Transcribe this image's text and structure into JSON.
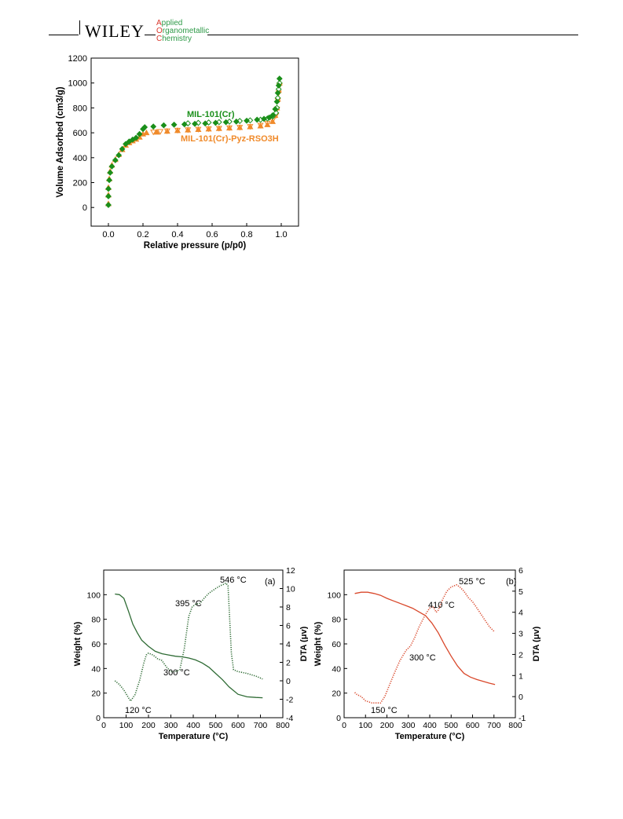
{
  "header": {
    "publisher": "WILEY",
    "journal_lines": [
      {
        "cap": "A",
        "rest": "pplied"
      },
      {
        "cap": "O",
        "rest": "rganometallic"
      },
      {
        "cap": "C",
        "rest": "hemistry"
      }
    ]
  },
  "colors": {
    "green": "#1a8f1a",
    "orange": "#f08a2a",
    "tga_green": "#2e6b34",
    "tga_red": "#d9482b"
  },
  "chart_data": [
    {
      "id": "isotherm",
      "type": "scatter",
      "title": "",
      "xlabel": "Relative pressure (p/p0)",
      "ylabel": "Volume Adsorbed (cm3/g)",
      "xlim": [
        -0.1,
        1.1
      ],
      "ylim": [
        -150,
        1200
      ],
      "xticks": [
        "0.0",
        "0.2",
        "0.4",
        "0.6",
        "0.8",
        "1.0"
      ],
      "yticks": [
        "0",
        "200",
        "400",
        "600",
        "800",
        "1000",
        "1200"
      ],
      "annotations": [
        "MIL-101(Cr)",
        "MIL-101(Cr)-Pyz-RSO3H"
      ],
      "series": [
        {
          "name": "MIL-101(Cr)",
          "marker": "diamond",
          "color": "#1a8f1a",
          "adsorption": [
            [
              0.0,
              20
            ],
            [
              0.0,
              90
            ],
            [
              0.0,
              150
            ],
            [
              0.005,
              220
            ],
            [
              0.01,
              280
            ],
            [
              0.02,
              330
            ],
            [
              0.04,
              380
            ],
            [
              0.06,
              420
            ],
            [
              0.08,
              470
            ],
            [
              0.1,
              510
            ],
            [
              0.12,
              530
            ],
            [
              0.14,
              545
            ],
            [
              0.16,
              560
            ],
            [
              0.18,
              590
            ],
            [
              0.2,
              630
            ],
            [
              0.21,
              645
            ],
            [
              0.26,
              650
            ],
            [
              0.32,
              660
            ],
            [
              0.38,
              665
            ],
            [
              0.44,
              668
            ],
            [
              0.5,
              672
            ],
            [
              0.56,
              675
            ],
            [
              0.62,
              680
            ],
            [
              0.68,
              685
            ],
            [
              0.74,
              690
            ],
            [
              0.8,
              697
            ],
            [
              0.86,
              705
            ],
            [
              0.9,
              712
            ],
            [
              0.93,
              722
            ],
            [
              0.95,
              740
            ],
            [
              0.965,
              790
            ],
            [
              0.975,
              850
            ],
            [
              0.98,
              920
            ],
            [
              0.985,
              980
            ],
            [
              0.99,
              1035
            ]
          ],
          "desorption": [
            [
              0.99,
              1000
            ],
            [
              0.985,
              950
            ],
            [
              0.98,
              880
            ],
            [
              0.975,
              800
            ],
            [
              0.97,
              760
            ],
            [
              0.95,
              730
            ],
            [
              0.92,
              715
            ],
            [
              0.88,
              705
            ],
            [
              0.82,
              700
            ],
            [
              0.76,
              695
            ],
            [
              0.7,
              690
            ],
            [
              0.64,
              686
            ],
            [
              0.58,
              683
            ],
            [
              0.52,
              680
            ],
            [
              0.46,
              676
            ]
          ]
        },
        {
          "name": "MIL-101(Cr)-Pyz-RSO3H",
          "marker": "triangle",
          "color": "#f08a2a",
          "adsorption": [
            [
              0.0,
              30
            ],
            [
              0.0,
              100
            ],
            [
              0.0,
              160
            ],
            [
              0.005,
              230
            ],
            [
              0.01,
              290
            ],
            [
              0.02,
              340
            ],
            [
              0.04,
              385
            ],
            [
              0.06,
              425
            ],
            [
              0.08,
              465
            ],
            [
              0.1,
              500
            ],
            [
              0.12,
              520
            ],
            [
              0.14,
              535
            ],
            [
              0.16,
              548
            ],
            [
              0.18,
              565
            ],
            [
              0.2,
              590
            ],
            [
              0.22,
              600
            ],
            [
              0.28,
              605
            ],
            [
              0.34,
              612
            ],
            [
              0.4,
              618
            ],
            [
              0.46,
              622
            ],
            [
              0.52,
              626
            ],
            [
              0.58,
              630
            ],
            [
              0.64,
              634
            ],
            [
              0.7,
              638
            ],
            [
              0.76,
              642
            ],
            [
              0.82,
              648
            ],
            [
              0.88,
              655
            ],
            [
              0.92,
              665
            ],
            [
              0.95,
              690
            ],
            [
              0.965,
              740
            ],
            [
              0.975,
              800
            ],
            [
              0.98,
              870
            ],
            [
              0.985,
              940
            ],
            [
              0.99,
              1000
            ]
          ],
          "desorption": [
            [
              0.99,
              980
            ],
            [
              0.985,
              920
            ],
            [
              0.98,
              860
            ],
            [
              0.975,
              790
            ],
            [
              0.97,
              740
            ],
            [
              0.95,
              700
            ],
            [
              0.92,
              675
            ],
            [
              0.88,
              660
            ],
            [
              0.82,
              650
            ],
            [
              0.76,
              644
            ],
            [
              0.7,
              640
            ],
            [
              0.64,
              636
            ],
            [
              0.58,
              632
            ],
            [
              0.52,
              628
            ],
            [
              0.46,
              624
            ],
            [
              0.4,
              620
            ],
            [
              0.34,
              615
            ],
            [
              0.3,
              610
            ],
            [
              0.26,
              606
            ]
          ]
        }
      ]
    },
    {
      "id": "tga_a",
      "type": "line",
      "panel_label": "(a)",
      "xlabel": "Temperature (°C)",
      "ylabel_left": "Weight (%)",
      "ylabel_right": "DTA (μv)",
      "xlim": [
        0,
        800
      ],
      "ylim_left": [
        0,
        120
      ],
      "ylim_right": [
        -4,
        12
      ],
      "xticks": [
        "0",
        "100",
        "200",
        "300",
        "400",
        "500",
        "600",
        "700",
        "800"
      ],
      "yticks_left": [
        "0",
        "20",
        "40",
        "60",
        "80",
        "100"
      ],
      "yticks_right": [
        "-4",
        "-2",
        "0",
        "2",
        "4",
        "6",
        "8",
        "10",
        "12"
      ],
      "annotations": [
        "546 °C",
        "395 °C",
        "300 °C",
        "120 °C"
      ],
      "series": [
        {
          "name": "",
          "axis": "left",
          "style": "solid",
          "color": "#2e6b34",
          "x": [
            50,
            70,
            90,
            110,
            130,
            150,
            170,
            200,
            230,
            260,
            290,
            320,
            350,
            380,
            410,
            440,
            470,
            500,
            530,
            560,
            600,
            640,
            680,
            710
          ],
          "y": [
            100.5,
            100,
            97,
            87,
            76,
            69,
            63,
            58,
            54,
            52,
            51,
            50,
            49.5,
            48.5,
            47,
            44.5,
            41,
            36,
            31,
            25,
            19,
            17,
            16.5,
            16.2
          ]
        },
        {
          "name": "",
          "axis": "right",
          "style": "dotted",
          "color": "#2e6b34",
          "x": [
            50,
            70,
            90,
            110,
            120,
            140,
            160,
            180,
            190,
            200,
            220,
            240,
            260,
            280,
            300,
            320,
            340,
            360,
            380,
            395,
            410,
            430,
            450,
            470,
            500,
            520,
            540,
            546,
            555,
            560,
            570,
            580,
            600,
            640,
            680,
            710
          ],
          "y": [
            0,
            -0.4,
            -1,
            -1.8,
            -2.2,
            -1.5,
            0,
            2,
            2.8,
            3,
            2.8,
            2.4,
            2.2,
            1.5,
            1,
            1,
            1.2,
            3.5,
            7,
            8,
            8.3,
            8.4,
            9,
            9.5,
            10,
            10.3,
            10.5,
            10.6,
            10.3,
            8,
            3,
            1.2,
            1,
            0.8,
            0.5,
            0.2
          ]
        }
      ]
    },
    {
      "id": "tga_b",
      "type": "line",
      "panel_label": "(b)",
      "xlabel": "Temperature (°C)",
      "ylabel_left": "Weight (%)",
      "ylabel_right": "DTA (μv)",
      "xlim": [
        0,
        800
      ],
      "ylim_left": [
        0,
        120
      ],
      "ylim_right": [
        -1,
        6
      ],
      "xticks": [
        "0",
        "100",
        "200",
        "300",
        "400",
        "500",
        "600",
        "700",
        "800"
      ],
      "yticks_left": [
        "0",
        "20",
        "40",
        "60",
        "80",
        "100"
      ],
      "yticks_right": [
        "-1",
        "0",
        "1",
        "2",
        "3",
        "4",
        "5",
        "6"
      ],
      "annotations": [
        "525 °C",
        "410 °C",
        "300 °C",
        "150 °C"
      ],
      "series": [
        {
          "name": "",
          "axis": "left",
          "style": "solid",
          "color": "#d9482b",
          "x": [
            50,
            80,
            110,
            140,
            170,
            200,
            230,
            260,
            290,
            320,
            350,
            380,
            410,
            440,
            470,
            500,
            530,
            560,
            590,
            620,
            650,
            680,
            705
          ],
          "y": [
            101,
            102,
            102,
            101,
            99.5,
            97,
            95,
            93,
            91,
            89,
            86,
            83,
            77,
            69,
            59,
            50,
            42,
            36,
            33,
            31,
            29.5,
            28,
            27
          ]
        },
        {
          "name": "",
          "axis": "right",
          "style": "dotted",
          "color": "#d9482b",
          "x": [
            50,
            60,
            80,
            100,
            130,
            150,
            170,
            190,
            210,
            230,
            260,
            290,
            310,
            330,
            350,
            380,
            400,
            410,
            420,
            430,
            440,
            460,
            480,
            500,
            525,
            540,
            560,
            580,
            600,
            620,
            640,
            660,
            680,
            700
          ],
          "y": [
            0.2,
            0.1,
            0,
            -0.2,
            -0.3,
            -0.3,
            -0.3,
            0,
            0.5,
            1,
            1.7,
            2.2,
            2.4,
            2.8,
            3.3,
            3.9,
            4.2,
            4.3,
            4.2,
            4,
            4.1,
            4.6,
            5,
            5.2,
            5.3,
            5.2,
            5,
            4.7,
            4.5,
            4.2,
            3.9,
            3.6,
            3.3,
            3.1
          ]
        }
      ]
    }
  ]
}
